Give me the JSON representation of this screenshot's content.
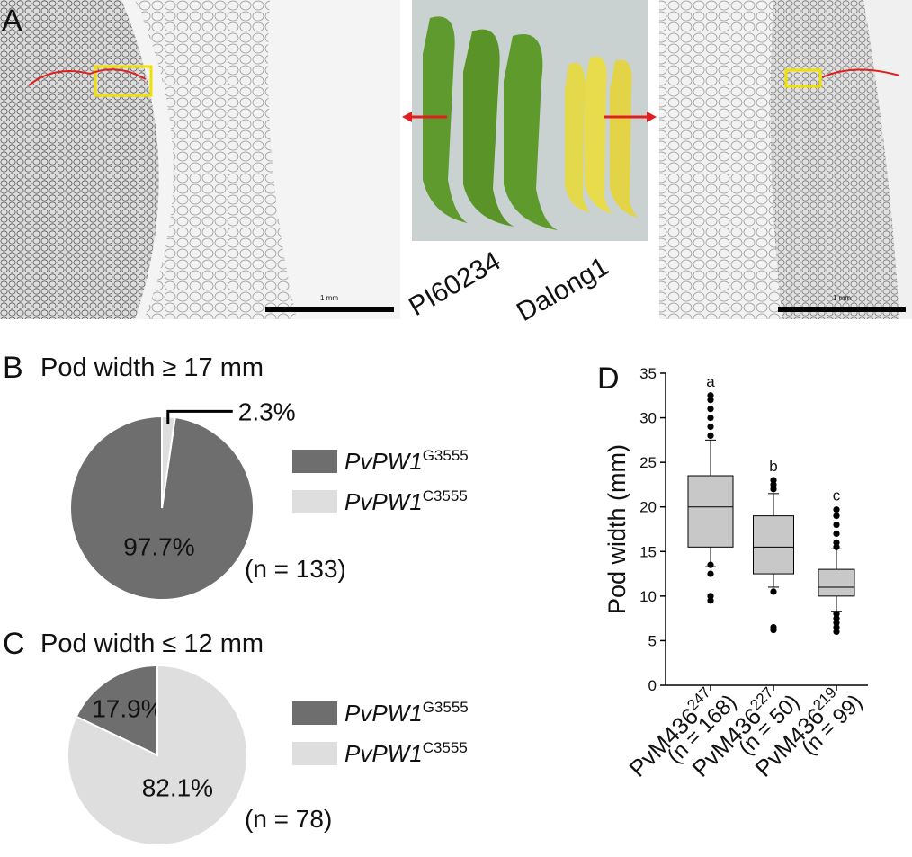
{
  "panel_a": {
    "label": "A",
    "scale_bar_left": "1 mm",
    "scale_bar_right": "1 mm",
    "cultivars": [
      "PI60234",
      "Dalong1"
    ]
  },
  "chart_data": [
    {
      "type": "pie",
      "panel": "B",
      "title": "Pod width ≥ 17 mm",
      "legend": [
        {
          "name": "PvPW1",
          "superscript": "G3555"
        },
        {
          "name": "PvPW1",
          "superscript": "C3555"
        }
      ],
      "values": [
        97.7,
        2.3
      ],
      "value_labels": [
        "97.7%",
        "2.3%"
      ],
      "colors": [
        "#6e6e6e",
        "#dedede"
      ],
      "note": "(n = 133)"
    },
    {
      "type": "pie",
      "panel": "C",
      "title": "Pod width ≤ 12 mm",
      "legend": [
        {
          "name": "PvPW1",
          "superscript": "G3555"
        },
        {
          "name": "PvPW1",
          "superscript": "C3555"
        }
      ],
      "values": [
        17.9,
        82.1
      ],
      "value_labels": [
        "17.9%",
        "82.1%"
      ],
      "colors": [
        "#6e6e6e",
        "#dedede"
      ],
      "note": "(n = 78)"
    },
    {
      "type": "box",
      "panel": "D",
      "ylabel": "Pod width (mm)",
      "categories": [
        {
          "name": "PvM436",
          "superscript": "247",
          "n": "(n = 168)"
        },
        {
          "name": "PvM436",
          "superscript": "227",
          "n": "(n = 50)"
        },
        {
          "name": "PvM436",
          "superscript": "219",
          "n": "(n = 99)"
        }
      ],
      "boxes": [
        {
          "low": 13.3,
          "q1": 15.5,
          "median": 20,
          "q3": 23.5,
          "high": 27.5,
          "outliers": [
            9.5,
            10,
            12.5,
            13.5,
            28,
            29,
            30,
            31,
            32,
            32.5
          ]
        },
        {
          "low": 11,
          "q1": 12.5,
          "median": 15.5,
          "q3": 19,
          "high": 21.5,
          "outliers": [
            6.2,
            6.5,
            10.5,
            22,
            22.5,
            23
          ]
        },
        {
          "low": 8.3,
          "q1": 10,
          "median": 11,
          "q3": 13,
          "high": 15.3,
          "outliers": [
            6,
            6.5,
            7,
            7.5,
            8,
            15.5,
            16,
            17,
            18,
            19,
            19.7
          ]
        }
      ],
      "letters": [
        "a",
        "b",
        "c"
      ],
      "color": "#c8c8c8",
      "ylim": [
        0,
        35
      ],
      "yticks": [
        0,
        5,
        10,
        15,
        20,
        25,
        30,
        35
      ]
    }
  ]
}
